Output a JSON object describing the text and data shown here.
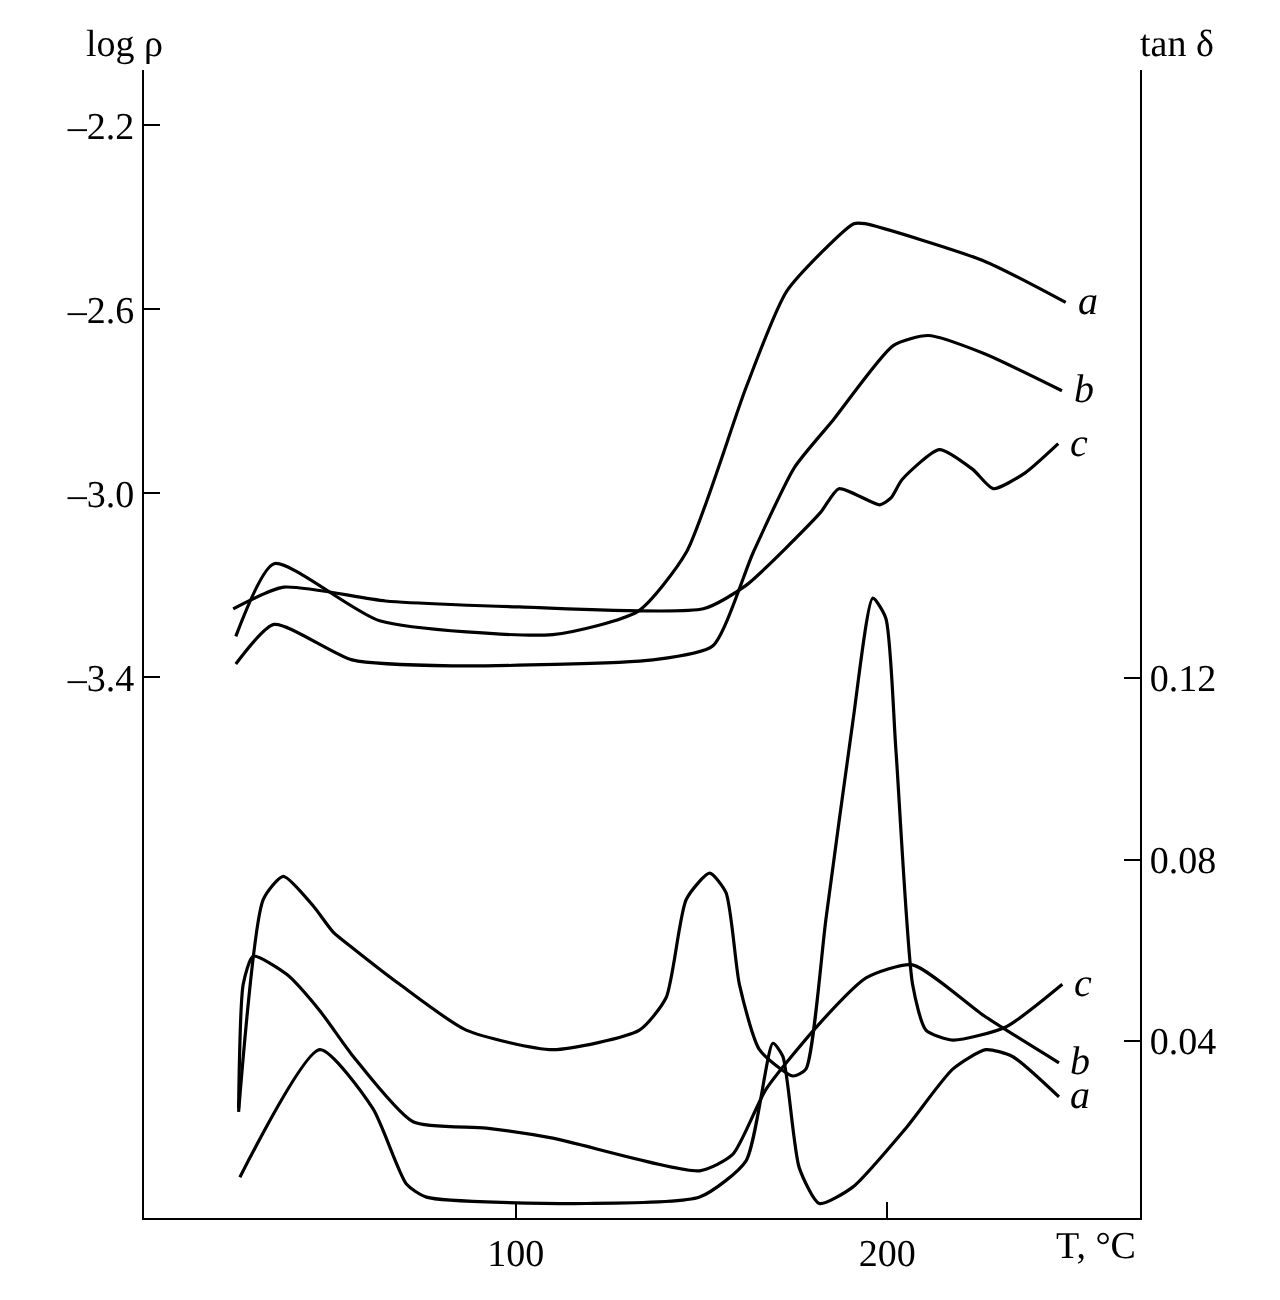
{
  "chart_data": {
    "type": "line",
    "xlabel": "T, °C",
    "ylabel": "log ρ",
    "y2label": "tan δ",
    "xlim": [
      0,
      268
    ],
    "xticks": [
      100,
      200
    ],
    "ylim": [
      -4.575,
      -2.08
    ],
    "yticks": [
      {
        "value": -2.2,
        "label": "–2.2"
      },
      {
        "value": -2.6,
        "label": "–2.6"
      },
      {
        "value": -3.0,
        "label": "–3.0"
      },
      {
        "value": -3.4,
        "label": "–3.4"
      }
    ],
    "y2lim": [
      0.001,
      0.254
    ],
    "y2ticks": [
      0.04,
      0.08,
      0.12
    ],
    "legend": false,
    "marker": "none",
    "line_style": "solid",
    "series": [
      {
        "name": "a",
        "color": "#000000",
        "x": [
          24.7,
          35,
          63.4,
          110,
          133,
          146,
          162,
          173,
          191,
          194,
          226,
          248
        ],
        "values": [
          -3.311,
          -3.153,
          -3.277,
          -3.307,
          -3.256,
          -3.127,
          -2.77,
          -2.56,
          -2.414,
          -2.414,
          -2.495,
          -2.585
        ]
      },
      {
        "name": "b",
        "color": "#000000",
        "x": [
          24.7,
          35,
          56,
          83,
          137,
          153,
          164,
          175,
          185.5,
          201.6,
          211,
          226,
          247
        ],
        "values": [
          -3.371,
          -3.285,
          -3.362,
          -3.375,
          -3.362,
          -3.332,
          -3.127,
          -2.944,
          -2.84,
          -2.679,
          -2.657,
          -2.696,
          -2.777
        ]
      },
      {
        "name": "c",
        "color": "#000000",
        "x": [
          24,
          37.6,
          65,
          101,
          150.5,
          162,
          182,
          187,
          198,
          201,
          204,
          214,
          223,
          228.5,
          237,
          246
        ],
        "values": [
          -3.251,
          -3.204,
          -3.234,
          -3.247,
          -3.251,
          -3.2,
          -3.042,
          -2.99,
          -3.025,
          -3.01,
          -2.97,
          -2.905,
          -2.948,
          -2.99,
          -2.956,
          -2.892
        ]
      },
      {
        "name": "a",
        "color": "#000000",
        "axis": "y2",
        "x": [
          25.8,
          47.3,
          61.6,
          70.6,
          76,
          119,
          149.5,
          162,
          169.2,
          171.9,
          176.3,
          181.7,
          190.7,
          205,
          217.6,
          226.5,
          233.7,
          246.2
        ],
        "values": [
          0.01,
          0.0381,
          0.0251,
          0.0085,
          0.0056,
          0.0042,
          0.0056,
          0.0136,
          0.0395,
          0.0366,
          0.0121,
          0.0042,
          0.0078,
          0.0208,
          0.0338,
          0.0381,
          0.0366,
          0.0277
        ]
      },
      {
        "name": "b",
        "color": "#000000",
        "axis": "y2",
        "x": [
          25.45,
          26.7,
          29.4,
          38.4,
          47.3,
          56.3,
          72.4,
          92.1,
          110,
          149.5,
          158.4,
          167.4,
          181.7,
          194.3,
          206.8,
          226.5,
          246.2
        ],
        "values": [
          0.0251,
          0.0525,
          0.0587,
          0.0547,
          0.0467,
          0.0366,
          0.0222,
          0.0208,
          0.0186,
          0.0114,
          0.015,
          0.0294,
          0.0438,
          0.0539,
          0.0568,
          0.0453,
          0.0352
        ]
      },
      {
        "name": "c",
        "color": "#000000",
        "axis": "y2",
        "x": [
          25.45,
          32.1,
          37.5,
          45.5,
          50.9,
          56.3,
          68.8,
          86.7,
          110,
          133.3,
          140.5,
          145.9,
          152.2,
          156.6,
          160.2,
          165.6,
          174.6,
          178.1,
          183.5,
          190.7,
          196.1,
          199.6,
          202.3,
          206.8,
          210.4,
          217.6,
          231.9,
          247.1
        ],
        "values": [
          0.0244,
          0.0712,
          0.0763,
          0.0698,
          0.064,
          0.0604,
          0.0525,
          0.0424,
          0.0381,
          0.0424,
          0.0496,
          0.0712,
          0.077,
          0.0727,
          0.0525,
          0.0381,
          0.0323,
          0.0338,
          0.0669,
          0.1102,
          0.1376,
          0.1332,
          0.1044,
          0.0525,
          0.0424,
          0.0402,
          0.0431,
          0.0525
        ]
      }
    ]
  }
}
